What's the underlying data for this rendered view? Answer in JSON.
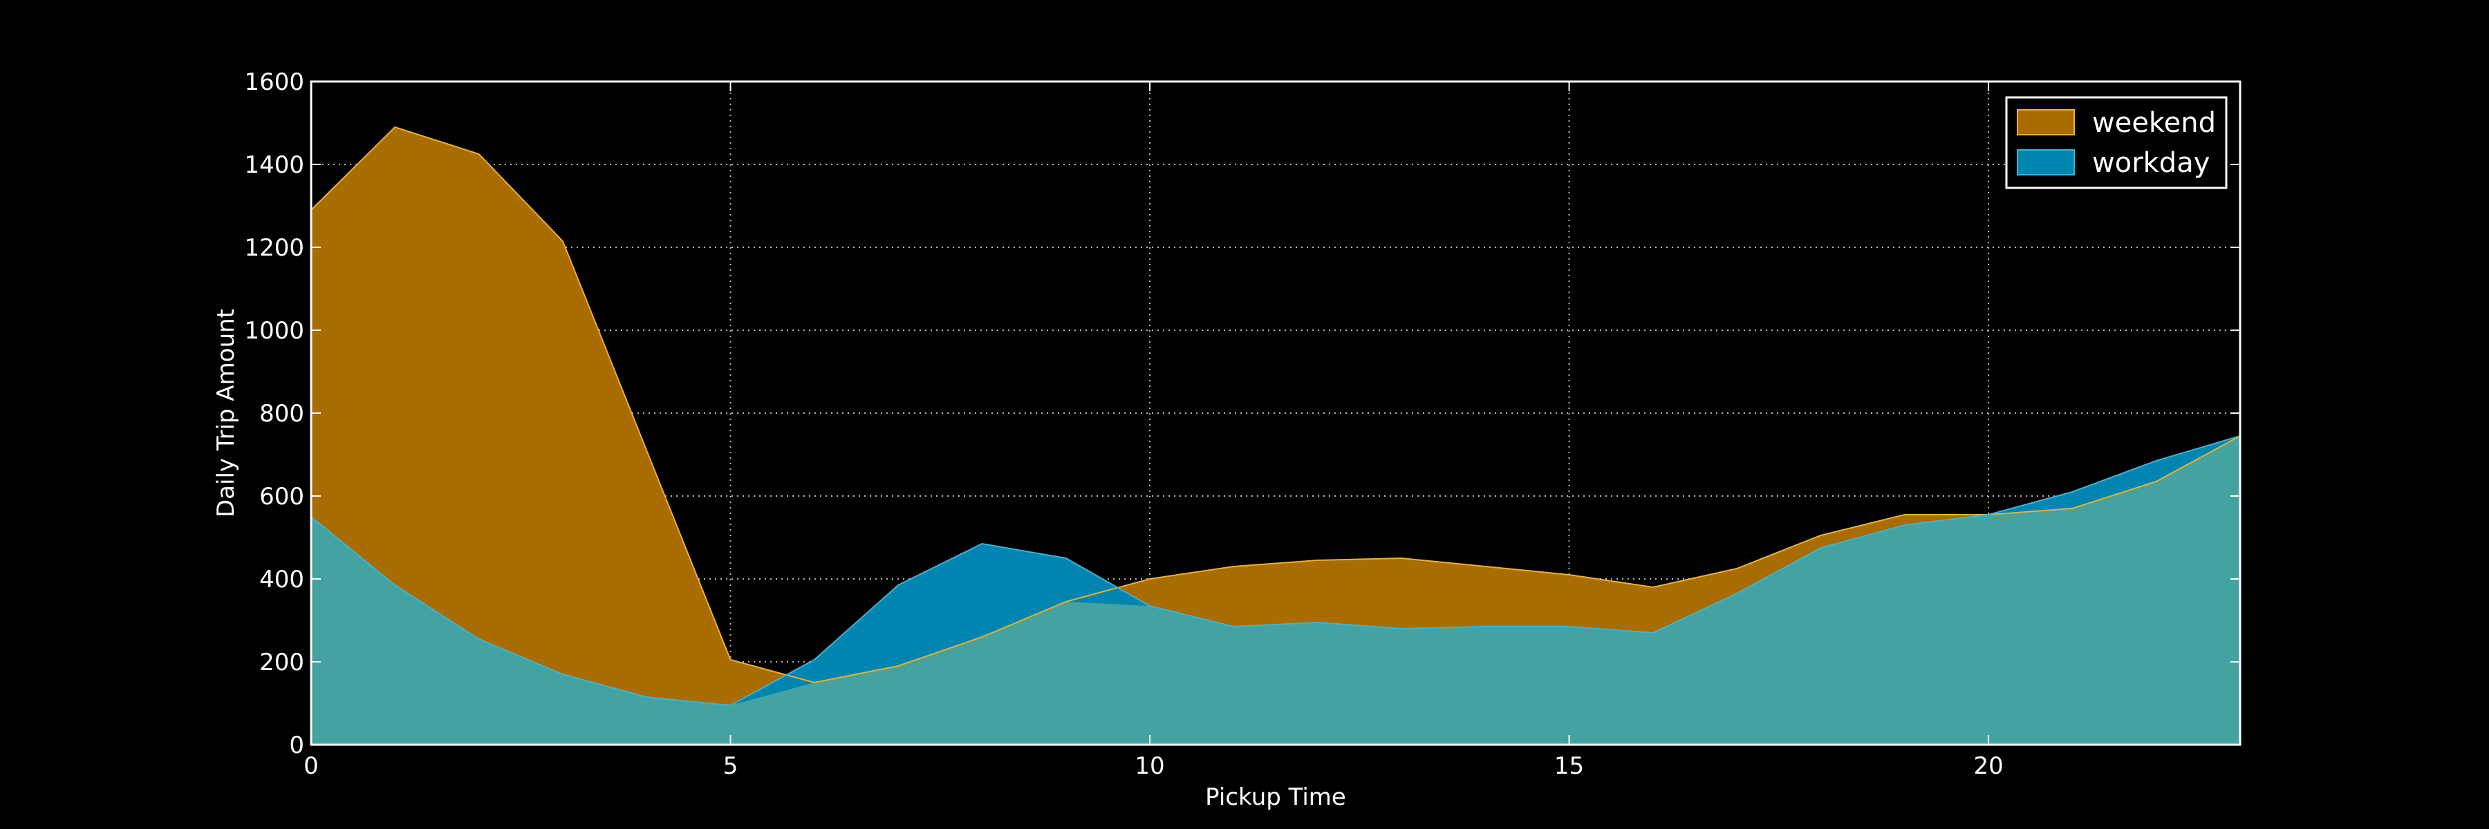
{
  "chart_data": {
    "type": "area",
    "xlabel": "Pickup Time",
    "ylabel": "Daily Trip Amount",
    "xlim": [
      0,
      23
    ],
    "ylim": [
      0,
      1600
    ],
    "x_ticks": [
      0,
      5,
      10,
      15,
      20
    ],
    "y_ticks": [
      0,
      200,
      400,
      600,
      800,
      1000,
      1200,
      1400,
      1600
    ],
    "grid": true,
    "legend_position": "top-right",
    "x": [
      0,
      1,
      2,
      3,
      4,
      5,
      6,
      7,
      8,
      9,
      10,
      11,
      12,
      13,
      14,
      15,
      16,
      17,
      18,
      19,
      20,
      21,
      22,
      23
    ],
    "series": [
      {
        "name": "weekend",
        "color": "#a86c00",
        "values": [
          1290,
          1490,
          1425,
          1215,
          710,
          205,
          150,
          190,
          260,
          345,
          400,
          430,
          445,
          450,
          430,
          410,
          380,
          425,
          505,
          555,
          555,
          570,
          635,
          745
        ]
      },
      {
        "name": "workday",
        "color": "#0084b0",
        "values": [
          550,
          385,
          255,
          170,
          115,
          95,
          205,
          385,
          485,
          450,
          335,
          285,
          295,
          280,
          285,
          285,
          270,
          365,
          475,
          530,
          555,
          610,
          685,
          745
        ]
      }
    ],
    "overlap_color": "#44a3a0"
  }
}
